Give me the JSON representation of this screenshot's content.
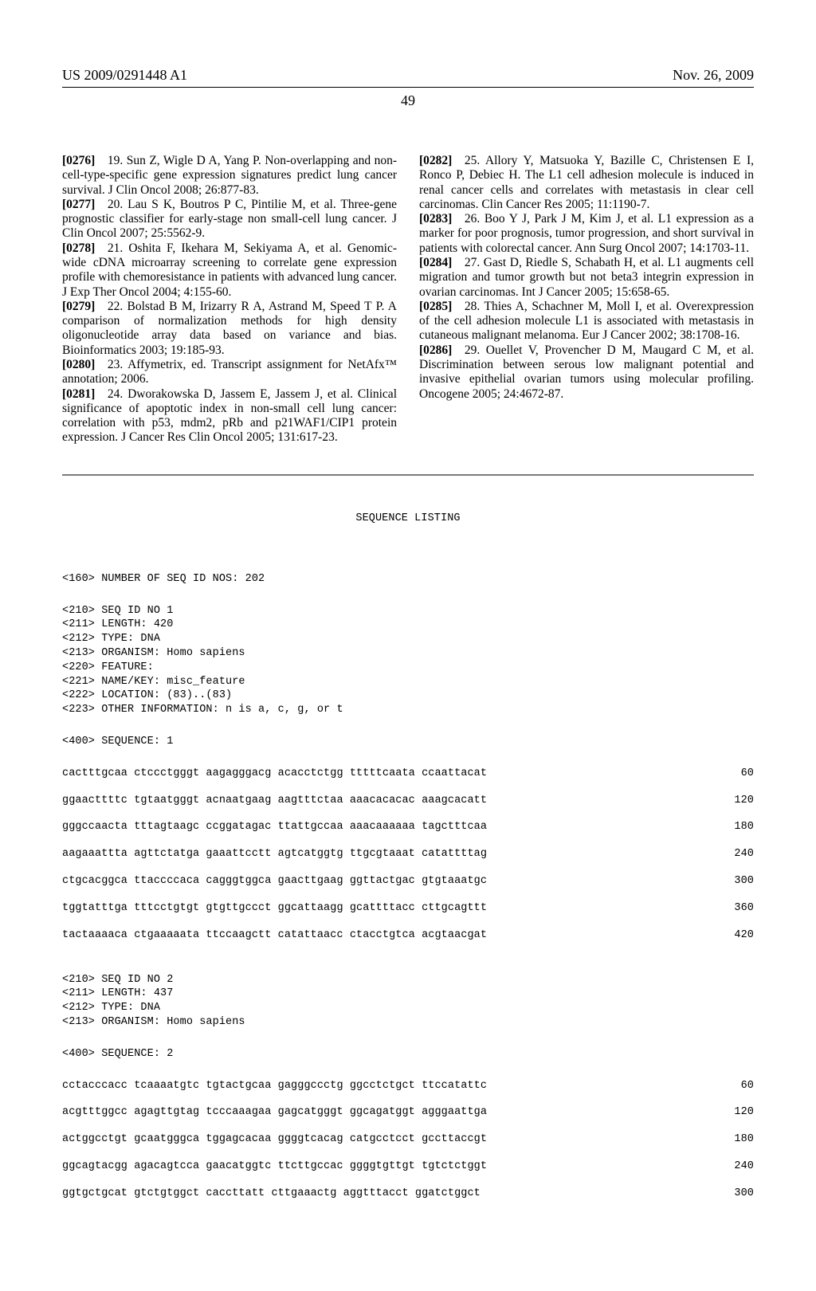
{
  "header": {
    "left": "US 2009/0291448 A1",
    "right": "Nov. 26, 2009"
  },
  "page_number": "49",
  "left_refs": [
    {
      "num": "[0276]",
      "text": "19. Sun Z, Wigle D A, Yang P. Non-overlapping and non-cell-type-specific gene expression signatures predict lung cancer survival. J Clin Oncol 2008; 26:877-83."
    },
    {
      "num": "[0277]",
      "text": "20. Lau S K, Boutros P C, Pintilie M, et al. Three-gene prognostic classifier for early-stage non small-cell lung cancer. J Clin Oncol 2007; 25:5562-9."
    },
    {
      "num": "[0278]",
      "text": "21. Oshita F, Ikehara M, Sekiyama A, et al. Genomic-wide cDNA microarray screening to correlate gene expression profile with chemoresistance in patients with advanced lung cancer. J Exp Ther Oncol 2004; 4:155-60."
    },
    {
      "num": "[0279]",
      "text": "22. Bolstad B M, Irizarry R A, Astrand M, Speed T P. A comparison of normalization methods for high density oligonucleotide array data based on variance and bias. Bioinformatics 2003; 19:185-93."
    },
    {
      "num": "[0280]",
      "text": "23. Affymetrix, ed. Transcript assignment for NetAfx™ annotation; 2006."
    },
    {
      "num": "[0281]",
      "text": "24. Dworakowska D, Jassem E, Jassem J, et al. Clinical significance of apoptotic index in non-small cell lung cancer: correlation with p53, mdm2, pRb and p21WAF1/CIP1 protein expression. J Cancer Res Clin Oncol 2005; 131:617-23."
    }
  ],
  "right_refs": [
    {
      "num": "[0282]",
      "text": "25. Allory Y, Matsuoka Y, Bazille C, Christensen E I, Ronco P, Debiec H. The L1 cell adhesion molecule is induced in renal cancer cells and correlates with metastasis in clear cell carcinomas. Clin Cancer Res 2005; 11:1190-7."
    },
    {
      "num": "[0283]",
      "text": "26. Boo Y J, Park J M, Kim J, et al. L1 expression as a marker for poor prognosis, tumor progression, and short survival in patients with colorectal cancer. Ann Surg Oncol 2007; 14:1703-11."
    },
    {
      "num": "[0284]",
      "text": "27. Gast D, Riedle S, Schabath H, et al. L1 augments cell migration and tumor growth but not beta3 integrin expression in ovarian carcinomas. Int J Cancer 2005; 15:658-65."
    },
    {
      "num": "[0285]",
      "text": "28. Thies A, Schachner M, Moll I, et al. Overexpression of the cell adhesion molecule L1 is associated with metastasis in cutaneous malignant melanoma. Eur J Cancer 2002; 38:1708-16."
    },
    {
      "num": "[0286]",
      "text": "29. Ouellet V, Provencher D M, Maugard C M, et al. Discrimination between serous low malignant potential and invasive epithelial ovarian tumors using molecular profiling. Oncogene 2005; 24:4672-87."
    }
  ],
  "seq": {
    "title": "SEQUENCE LISTING",
    "num_ids": "<160> NUMBER OF SEQ ID NOS: 202",
    "entries": [
      {
        "meta": "<210> SEQ ID NO 1\n<211> LENGTH: 420\n<212> TYPE: DNA\n<213> ORGANISM: Homo sapiens\n<220> FEATURE:\n<221> NAME/KEY: misc_feature\n<222> LOCATION: (83)..(83)\n<223> OTHER INFORMATION: n is a, c, g, or t",
        "seqlabel": "<400> SEQUENCE: 1",
        "rows": [
          {
            "s": "cactttgcaa ctccctgggt aagagggacg acacctctgg tttttcaata ccaattacat",
            "p": "60"
          },
          {
            "s": "ggaacttttc tgtaatgggt acnaatgaag aagtttctaa aaacacacac aaagcacatt",
            "p": "120"
          },
          {
            "s": "gggccaacta tttagtaagc ccggatagac ttattgccaa aaacaaaaaa tagctttcaa",
            "p": "180"
          },
          {
            "s": "aagaaattta agttctatga gaaattcctt agtcatggtg ttgcgtaaat catattttag",
            "p": "240"
          },
          {
            "s": "ctgcacggca ttaccccaca cagggtggca gaacttgaag ggttactgac gtgtaaatgc",
            "p": "300"
          },
          {
            "s": "tggtatttga tttcctgtgt gtgttgccct ggcattaagg gcattttacc cttgcagttt",
            "p": "360"
          },
          {
            "s": "tactaaaaca ctgaaaaata ttccaagctt catattaacc ctacctgtca acgtaacgat",
            "p": "420"
          }
        ]
      },
      {
        "meta": "<210> SEQ ID NO 2\n<211> LENGTH: 437\n<212> TYPE: DNA\n<213> ORGANISM: Homo sapiens",
        "seqlabel": "<400> SEQUENCE: 2",
        "rows": [
          {
            "s": "cctacccacc tcaaaatgtc tgtactgcaa gagggccctg ggcctctgct ttccatattc",
            "p": "60"
          },
          {
            "s": "acgtttggcc agagttgtag tcccaaagaa gagcatgggt ggcagatggt agggaattga",
            "p": "120"
          },
          {
            "s": "actggcctgt gcaatgggca tggagcacaa ggggtcacag catgcctcct gccttaccgt",
            "p": "180"
          },
          {
            "s": "ggcagtacgg agacagtcca gaacatggtc ttcttgccac ggggtgttgt tgtctctggt",
            "p": "240"
          },
          {
            "s": "ggtgctgcat gtctgtggct caccttatt cttgaaactg aggtttacct ggatctggct",
            "p": "300"
          }
        ]
      }
    ]
  }
}
